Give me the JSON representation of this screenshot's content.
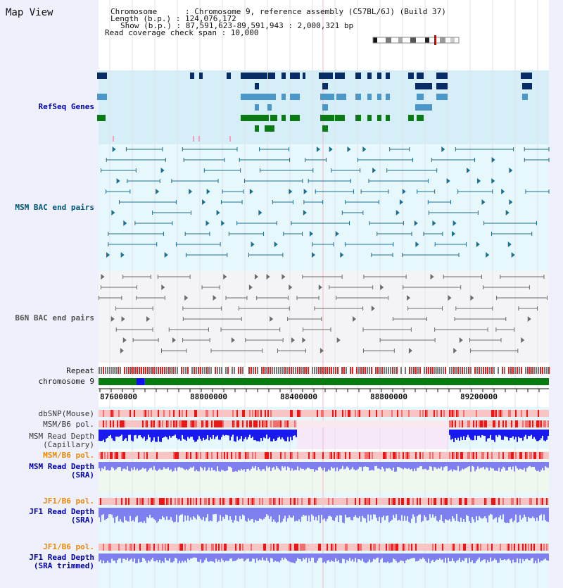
{
  "map_title": "Map View",
  "header": {
    "chromosome_line": "Chromosome      : Chromosome 9, reference assembly (C57BL/6J) (Build 37)",
    "length_line": "Length (b.p.) : 124,076,172",
    "show_line": "Show (b.p.) : 87,591,623-89,591,943 : 2,000,321 bp",
    "coverage_line": "Read coverage check span : 10,000"
  },
  "tracks": {
    "refseq": {
      "label": "RefSeq Genes",
      "color": "#0000aa"
    },
    "msm_bac": {
      "label": "MSM BAC end pairs",
      "color": "#005577"
    },
    "b6n_bac": {
      "label": "B6N BAC end pairs",
      "color": "#555555"
    },
    "repeat": {
      "label": "Repeat"
    },
    "chromosome": {
      "label": "chromosome 9"
    },
    "dbsnp": {
      "label": "dbSNP(Mouse)"
    },
    "msm_b6_pol_1": {
      "label": "MSM/B6 pol."
    },
    "msm_depth_cap": {
      "label": "MSM Read Depth\n(Capillary)"
    },
    "msm_b6_pol_2": {
      "label": "MSM/B6 pol.",
      "color": "#ee8800"
    },
    "msm_depth_sra": {
      "label": "MSM Read Depth\n(SRA)",
      "color": "#0000aa"
    },
    "jf1_b6_pol_1": {
      "label": "JF1/B6 pol.",
      "color": "#ee8800"
    },
    "jf1_depth_sra": {
      "label": "JF1 Read Depth\n(SRA)",
      "color": "#0000aa"
    },
    "jf1_b6_pol_2": {
      "label": "JF1/B6 pol.",
      "color": "#ee8800"
    },
    "jf1_depth_trim": {
      "label": "JF1 Read Depth\n(SRA trimmed)",
      "color": "#0000aa"
    }
  },
  "axis": {
    "tick_labels": [
      "87600000",
      "88000000",
      "88400000",
      "88800000",
      "89200000"
    ]
  },
  "colors": {
    "refseq_dark": "#0a2c66",
    "refseq_mid": "#4a97c8",
    "refseq_green": "#0b7a14",
    "bac_teal": "#1d6f8f",
    "bac_gray": "#6b6b6b",
    "chrom_green": "#0a7a12",
    "chrom_blue": "#1010ee",
    "depth_blue": "#1a1aee",
    "depth_light": "#7f7ff0",
    "snp_red": "#ee3030"
  }
}
